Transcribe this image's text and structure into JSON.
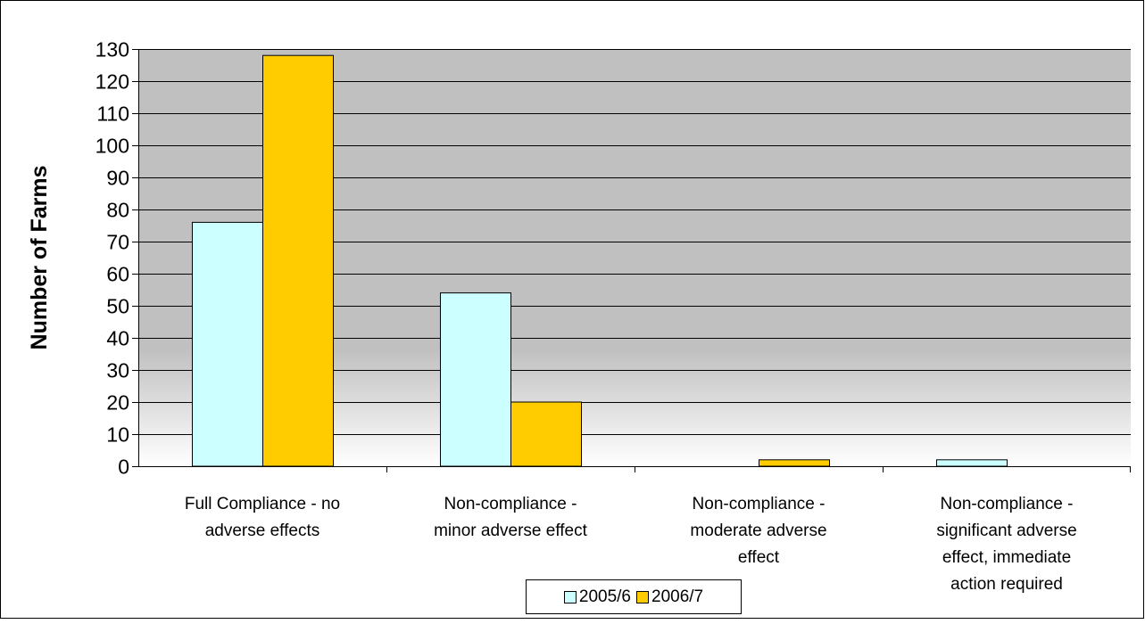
{
  "chart_data": {
    "type": "bar",
    "title": "",
    "xlabel": "",
    "ylabel": "Number of Farms",
    "ylim": [
      0,
      130
    ],
    "yticks": [
      "0",
      "10",
      "20",
      "30",
      "40",
      "50",
      "60",
      "70",
      "80",
      "90",
      "100",
      "110",
      "120",
      "130"
    ],
    "grid": "horizontal",
    "legend_position": "bottom",
    "categories": [
      [
        "Full Compliance - no",
        "adverse effects"
      ],
      [
        "Non-compliance -",
        "minor adverse effect"
      ],
      [
        "Non-compliance -",
        "moderate adverse",
        "effect"
      ],
      [
        "Non-compliance -",
        "significant adverse",
        "effect, immediate",
        "action required"
      ]
    ],
    "series": [
      {
        "name": "2005/6",
        "color": "#ccffff",
        "values": [
          76,
          54,
          0,
          2
        ]
      },
      {
        "name": "2006/7",
        "color": "#ffcc00",
        "values": [
          128,
          20,
          2,
          0
        ]
      }
    ],
    "plot_background": "gradient grey #c0c0c0 to white"
  }
}
